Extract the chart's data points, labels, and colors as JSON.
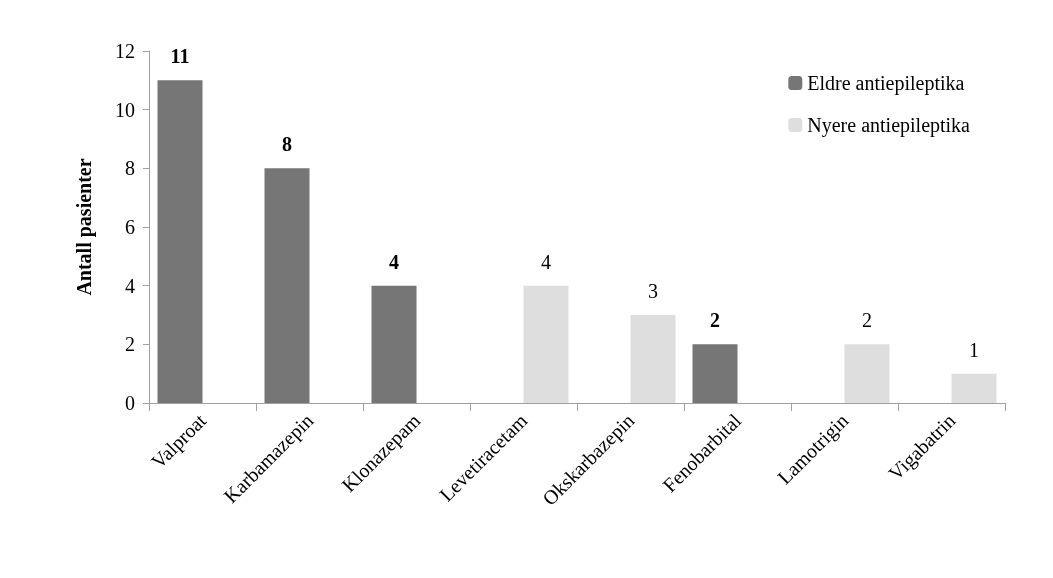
{
  "chart_data": {
    "type": "bar",
    "ylabel": "Antall pasienter",
    "categories": [
      "Valproat",
      "Karbamazepin",
      "Klonazepam",
      "Levetiracetam",
      "Okskarbazepin",
      "Fenobarbital",
      "Lamotrigin",
      "Vigabatrin"
    ],
    "series": [
      {
        "name": "Eldre antiepileptika",
        "color": "#767676",
        "values": [
          11,
          8,
          4,
          null,
          null,
          2,
          null,
          null
        ]
      },
      {
        "name": "Nyere antiepileptika",
        "color": "#dedede",
        "values": [
          null,
          null,
          null,
          4,
          3,
          null,
          2,
          1
        ]
      }
    ],
    "ylim": [
      0,
      12
    ],
    "yticks": [
      0,
      2,
      4,
      6,
      8,
      10,
      12
    ],
    "grid": false,
    "legend": "top right",
    "data_labels": true
  }
}
